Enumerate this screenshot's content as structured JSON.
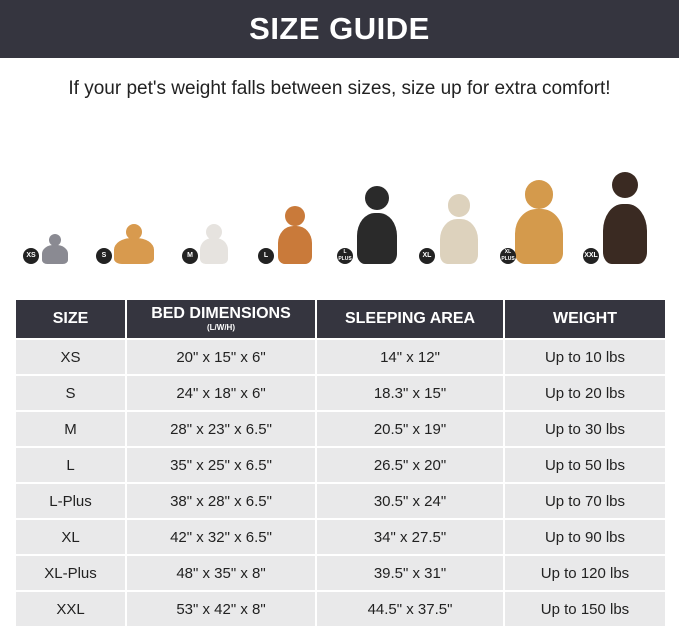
{
  "header": {
    "title": "SIZE GUIDE",
    "subtitle": "If your pet's weight falls between sizes, size up for extra comfort!"
  },
  "pets": [
    {
      "badge": "XS",
      "color": "#8a8a92"
    },
    {
      "badge": "S",
      "color": "#d89a4e"
    },
    {
      "badge": "M",
      "color": "#e6e3df"
    },
    {
      "badge": "L",
      "color": "#c97a3a"
    },
    {
      "badge": "L PLUS",
      "color": "#2a2a2a"
    },
    {
      "badge": "XL",
      "color": "#ddd2bd"
    },
    {
      "badge": "XL PLUS",
      "color": "#d49a4c"
    },
    {
      "badge": "XXL",
      "color": "#3a2a22"
    }
  ],
  "table": {
    "headers": {
      "size": "SIZE",
      "bed": "BED DIMENSIONS",
      "bed_sub": "(L/W/H)",
      "area": "SLEEPING AREA",
      "weight": "WEIGHT"
    },
    "rows": [
      [
        "XS",
        "20\" x 15\" x 6\"",
        "14\" x 12\"",
        "Up to 10 lbs"
      ],
      [
        "S",
        "24\" x 18\" x 6\"",
        "18.3\" x 15\"",
        "Up to 20 lbs"
      ],
      [
        "M",
        "28\" x 23\" x 6.5\"",
        "20.5\" x 19\"",
        "Up to 30 lbs"
      ],
      [
        "L",
        "35\" x 25\" x 6.5\"",
        "26.5\" x 20\"",
        "Up to 50 lbs"
      ],
      [
        "L-Plus",
        "38\" x 28\" x 6.5\"",
        "30.5\" x 24\"",
        "Up to 70 lbs"
      ],
      [
        "XL",
        "42\" x 32\" x 6.5\"",
        "34\" x 27.5\"",
        "Up to 90 lbs"
      ],
      [
        "XL-Plus",
        "48\" x 35\" x 8\"",
        "39.5\" x 31\"",
        "Up to 120 lbs"
      ],
      [
        "XXL",
        "53\" x 42\" x 8\"",
        "44.5\" x 37.5\"",
        "Up to 150 lbs"
      ]
    ]
  }
}
